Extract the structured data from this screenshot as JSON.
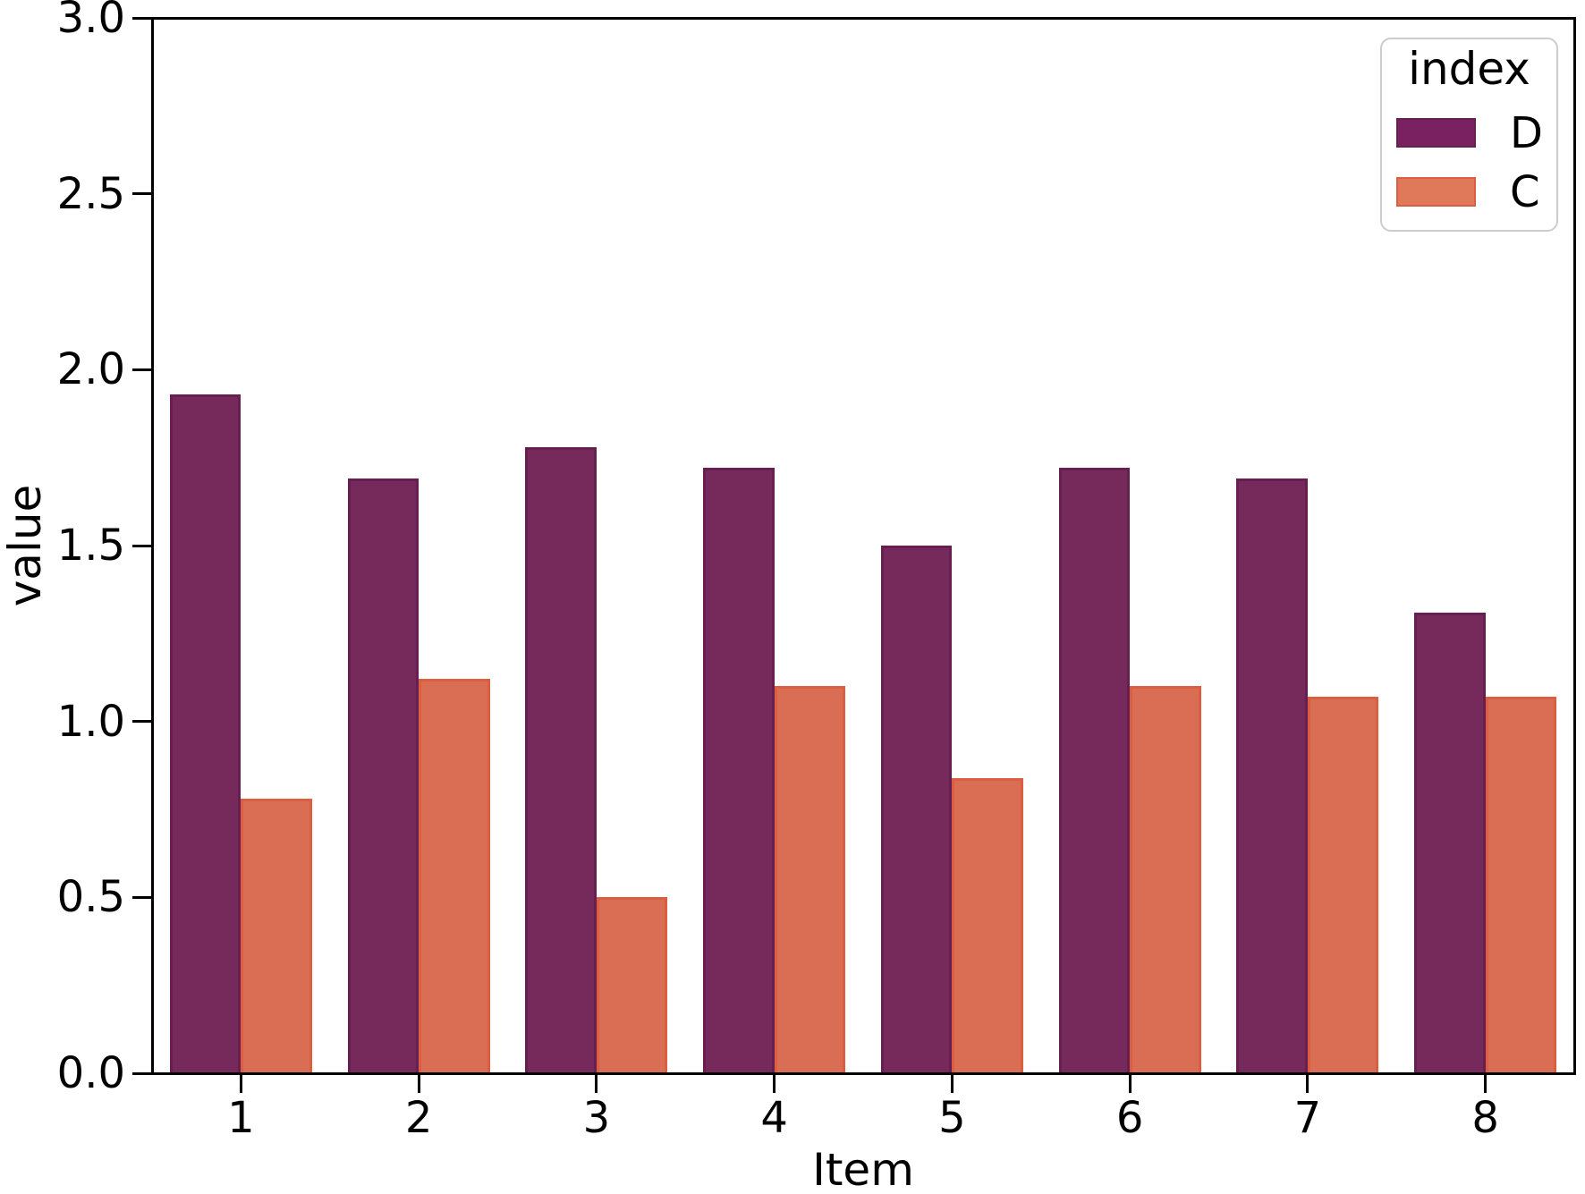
{
  "chart_data": {
    "type": "bar",
    "title": "",
    "xlabel": "Item",
    "ylabel": "value",
    "categories": [
      "1",
      "2",
      "3",
      "4",
      "5",
      "6",
      "7",
      "8"
    ],
    "series": [
      {
        "name": "D",
        "color": "#76295B",
        "edge_color": "#671E50",
        "legend_color": "#7A2161",
        "values": [
          1.93,
          1.69,
          1.78,
          1.72,
          1.5,
          1.72,
          1.69,
          1.31
        ]
      },
      {
        "name": "C",
        "color": "#D96E55",
        "edge_color": "#DC5E41",
        "legend_color": "#E0785A",
        "values": [
          0.78,
          1.12,
          0.5,
          1.1,
          0.84,
          1.1,
          1.07,
          1.07
        ]
      }
    ],
    "ylim": [
      0,
      3
    ],
    "yticks": [
      0,
      0.5,
      1,
      1.5,
      2,
      2.5,
      3
    ],
    "ytick_labels": [
      "0.0",
      "0.5",
      "1.0",
      "1.5",
      "2.0",
      "2.5",
      "3.0"
    ],
    "legend": {
      "title": "index",
      "position": "upper right",
      "entries": [
        "D",
        "C"
      ]
    },
    "grid": false,
    "axes_box": true,
    "bar_group_fraction": 0.8,
    "colors": {
      "spine": "#000000",
      "text": "#000000",
      "background": "#FFFFFF",
      "legend_border": "#CCCCCC"
    }
  }
}
